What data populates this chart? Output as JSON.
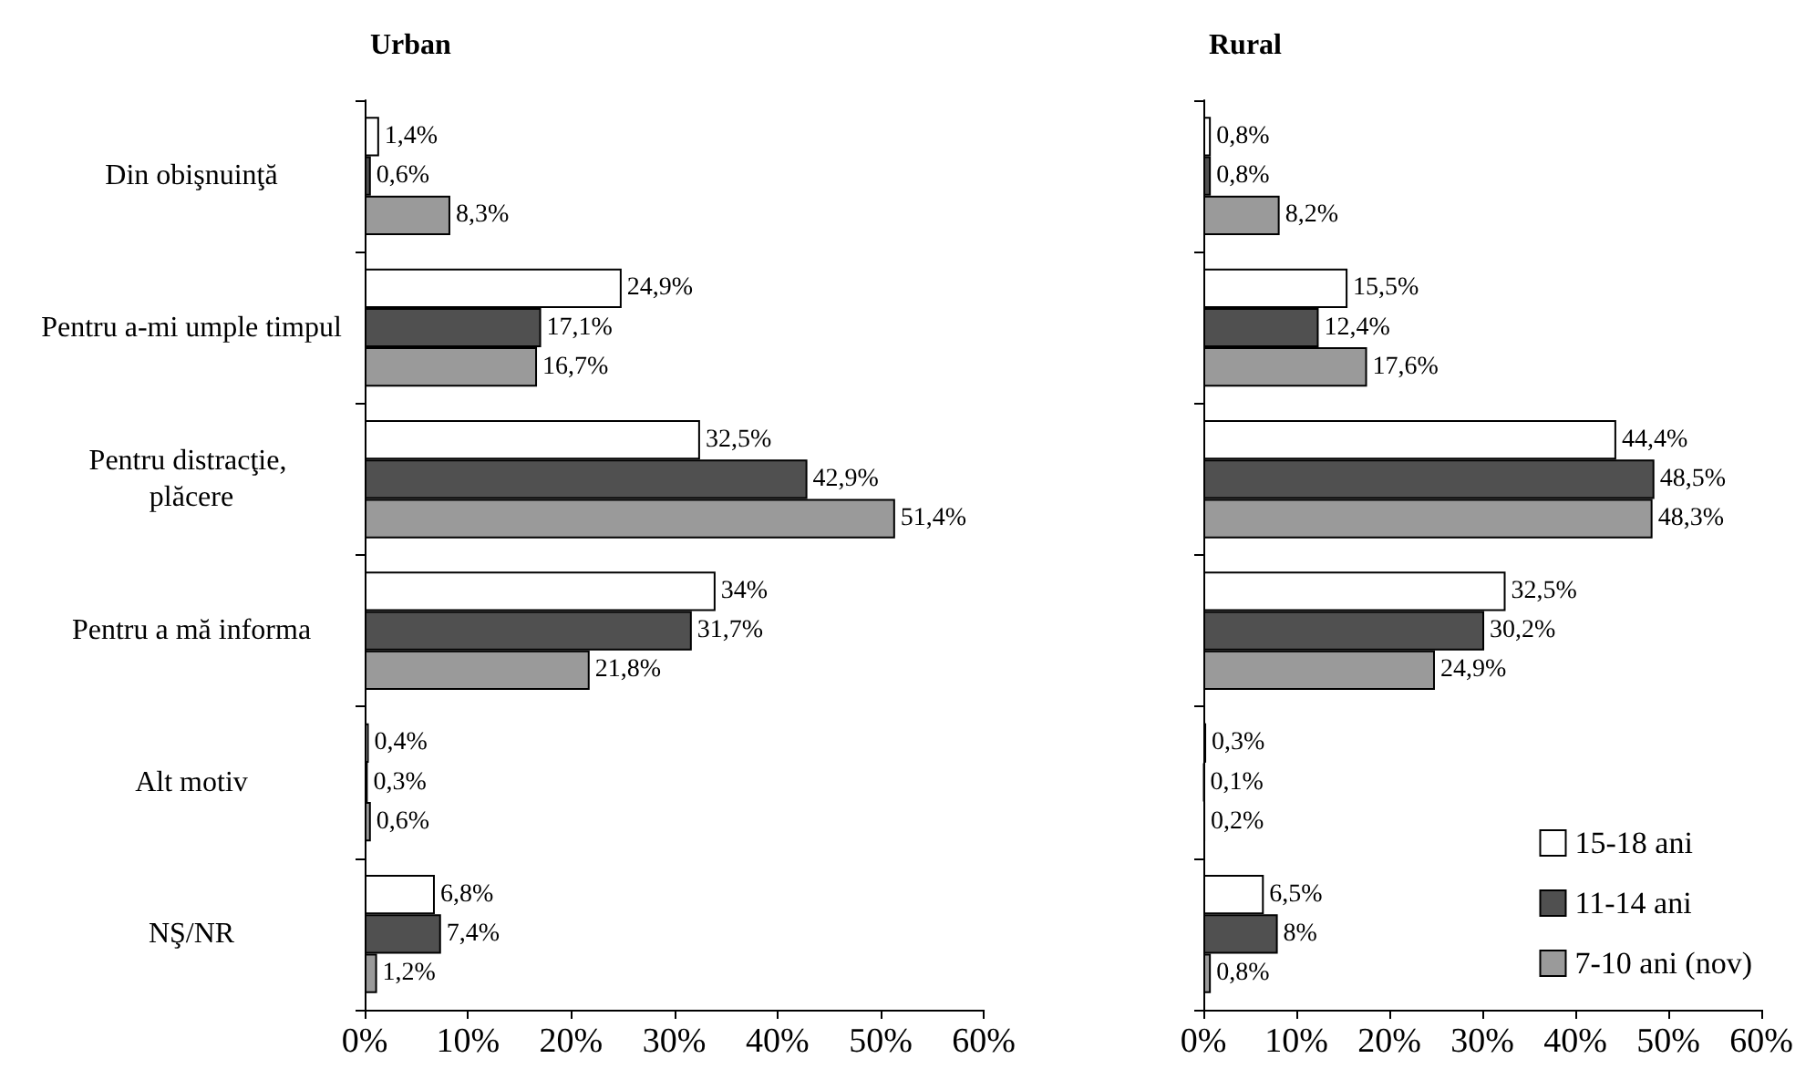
{
  "chart_data": [
    {
      "type": "bar",
      "orientation": "horizontal",
      "title": "Urban",
      "categories": [
        "Din obişnuinţă",
        "Pentru a-mi umple timpul",
        "Pentru distracţie, plăcere",
        "Pentru a mă informa",
        "Alt motiv",
        "NŞ/NR"
      ],
      "xlim": [
        0,
        60
      ],
      "xticks": [
        {
          "value": 0,
          "label": "0%"
        },
        {
          "value": 10,
          "label": "10%"
        },
        {
          "value": 20,
          "label": "20%"
        },
        {
          "value": 30,
          "label": "30%"
        },
        {
          "value": 40,
          "label": "40%"
        },
        {
          "value": 50,
          "label": "50%"
        },
        {
          "value": 60,
          "label": "60%"
        }
      ],
      "grid": false,
      "series": [
        {
          "color": "#ffffff",
          "values": [
            1.4,
            24.9,
            32.5,
            34,
            0.4,
            6.8
          ],
          "value_labels": [
            "1,4%",
            "24,9%",
            "32,5%",
            "34%",
            "0,4%",
            "6,8%"
          ]
        },
        {
          "color": "#505050",
          "values": [
            0.6,
            17.1,
            42.9,
            31.7,
            0.3,
            7.4
          ],
          "value_labels": [
            "0,6%",
            "17,1%",
            "42,9%",
            "31,7%",
            "0,3%",
            "7,4%"
          ]
        },
        {
          "color": "#9a9a9a",
          "values": [
            8.3,
            16.7,
            51.4,
            21.8,
            0.6,
            1.2
          ],
          "value_labels": [
            "8,3%",
            "16,7%",
            "51,4%",
            "21,8%",
            "0,6%",
            "1,2%"
          ]
        }
      ]
    },
    {
      "type": "bar",
      "orientation": "horizontal",
      "title": "Rural",
      "categories": [
        "Din obişnuinţă",
        "Pentru a-mi umple timpul",
        "Pentru distracţie, plăcere",
        "Pentru a mă informa",
        "Alt motiv",
        "NŞ/NR"
      ],
      "tick_labels": "x",
      "xlim": [
        0,
        60
      ],
      "xticks": [
        {
          "value": 0,
          "label": "0%"
        },
        {
          "value": 10,
          "label": "10%"
        },
        {
          "value": 20,
          "label": "20%"
        },
        {
          "value": 30,
          "label": "30%"
        },
        {
          "value": 40,
          "label": "40%"
        },
        {
          "value": 50,
          "label": "50%"
        },
        {
          "value": 60,
          "label": "60%"
        }
      ],
      "grid": false,
      "legend": "bottom right",
      "series": [
        {
          "name": "15-18 ani",
          "color": "#ffffff",
          "values": [
            0.8,
            15.5,
            44.4,
            32.5,
            0.3,
            6.5
          ],
          "value_labels": [
            "0,8%",
            "15,5%",
            "44,4%",
            "32,5%",
            "0,3%",
            "6,5%"
          ]
        },
        {
          "name": "11-14 ani",
          "color": "#505050",
          "values": [
            0.8,
            12.4,
            48.5,
            30.2,
            0.1,
            8
          ],
          "value_labels": [
            "0,8%",
            "12,4%",
            "48,5%",
            "30,2%",
            "0,1%",
            "8%"
          ]
        },
        {
          "name": "7-10 ani (nov)",
          "color": "#9a9a9a",
          "values": [
            8.2,
            17.6,
            48.3,
            24.9,
            0.2,
            0.8
          ],
          "value_labels": [
            "8,2%",
            "17,6%",
            "48,3%",
            "24,9%",
            "0,2%",
            "0,8%"
          ]
        }
      ]
    }
  ]
}
